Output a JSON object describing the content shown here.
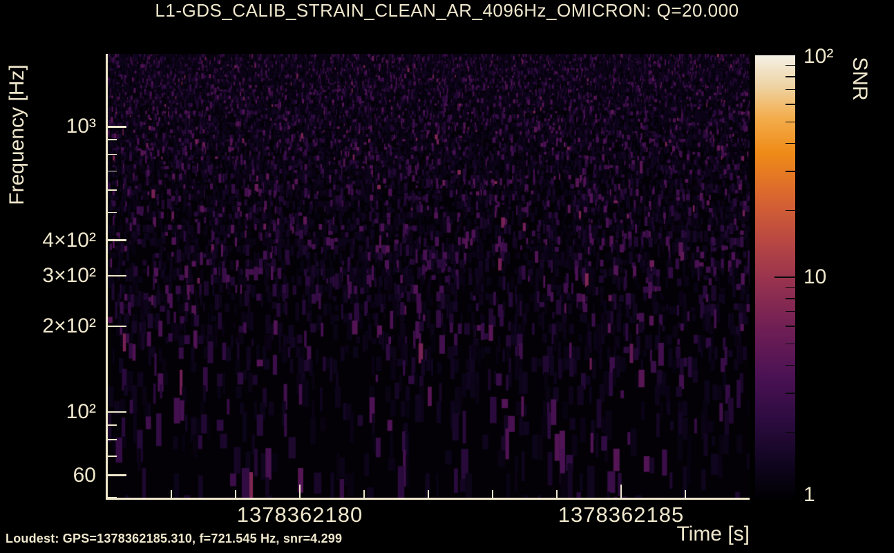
{
  "title": "L1-GDS_CALIB_STRAIN_CLEAN_AR_4096Hz_OMICRON: Q=20.000",
  "footer": {
    "loudest_label": "Loudest: GPS=1378362185.310, f=721.545 Hz, snr=4.299"
  },
  "colors": {
    "background": "#000000",
    "text": "#efe7cc",
    "axis": "#efe7cc",
    "plot_background": "#030106"
  },
  "chart_data": {
    "type": "heatmap",
    "subtype": "omicron-q-scan-spectrogram",
    "title": "L1-GDS_CALIB_STRAIN_CLEAN_AR_4096Hz_OMICRON: Q=20.000",
    "xlabel": "Time [s]",
    "ylabel": "Frequency [Hz]",
    "colorbar_label": "SNR",
    "x_range_gps": [
      1378362177,
      1378362187
    ],
    "y_range_hz": [
      49.5,
      1800
    ],
    "y_scale": "log",
    "color_scale": "log",
    "color_range_snr": [
      1,
      100
    ],
    "grid": false,
    "x_ticks": {
      "major": [
        {
          "value": 1378362180,
          "label": "1378362180"
        },
        {
          "value": 1378362185,
          "label": "1378362185"
        }
      ],
      "minor": [
        1378362178,
        1378362179,
        1378362181,
        1378362182,
        1378362183,
        1378362184,
        1378362186
      ]
    },
    "y_ticks": {
      "labeled": [
        {
          "value": 1000,
          "label": "10³"
        },
        {
          "value": 400,
          "label": "4×10²"
        },
        {
          "value": 300,
          "label": "3×10²"
        },
        {
          "value": 200,
          "label": "2×10²"
        },
        {
          "value": 100,
          "label": "10²"
        },
        {
          "value": 60,
          "label": "60"
        }
      ],
      "minor": [
        900,
        800,
        700,
        600,
        500,
        90,
        80,
        70,
        50
      ]
    },
    "colorbar_ticks": {
      "labeled": [
        {
          "value": 100,
          "label": "10²"
        },
        {
          "value": 10,
          "label": "10"
        },
        {
          "value": 1,
          "label": "1"
        }
      ],
      "minor": [
        90,
        80,
        70,
        60,
        50,
        40,
        30,
        20,
        9,
        8,
        7,
        6,
        5,
        4,
        3,
        2
      ]
    },
    "colormap_stops": [
      [
        0.0,
        "#000002"
      ],
      [
        0.08,
        "#10051f"
      ],
      [
        0.18,
        "#2d0b40"
      ],
      [
        0.28,
        "#4c1254"
      ],
      [
        0.38,
        "#6e1e55"
      ],
      [
        0.48,
        "#933050"
      ],
      [
        0.58,
        "#b84743"
      ],
      [
        0.68,
        "#d96530"
      ],
      [
        0.78,
        "#ef8b17"
      ],
      [
        0.86,
        "#f3ad4d"
      ],
      [
        0.93,
        "#eed3a2"
      ],
      [
        1.0,
        "#f5f1e6"
      ]
    ],
    "loudest_event": {
      "gps": 1378362185.31,
      "frequency_hz": 721.545,
      "snr": 4.299
    },
    "noise_texture": {
      "seed": 20230905,
      "snr_typical_range": [
        1,
        4.3
      ],
      "pattern": "vertical Q-tile striations; finer and denser at high frequency, sparser wider blocks at low frequency"
    }
  }
}
